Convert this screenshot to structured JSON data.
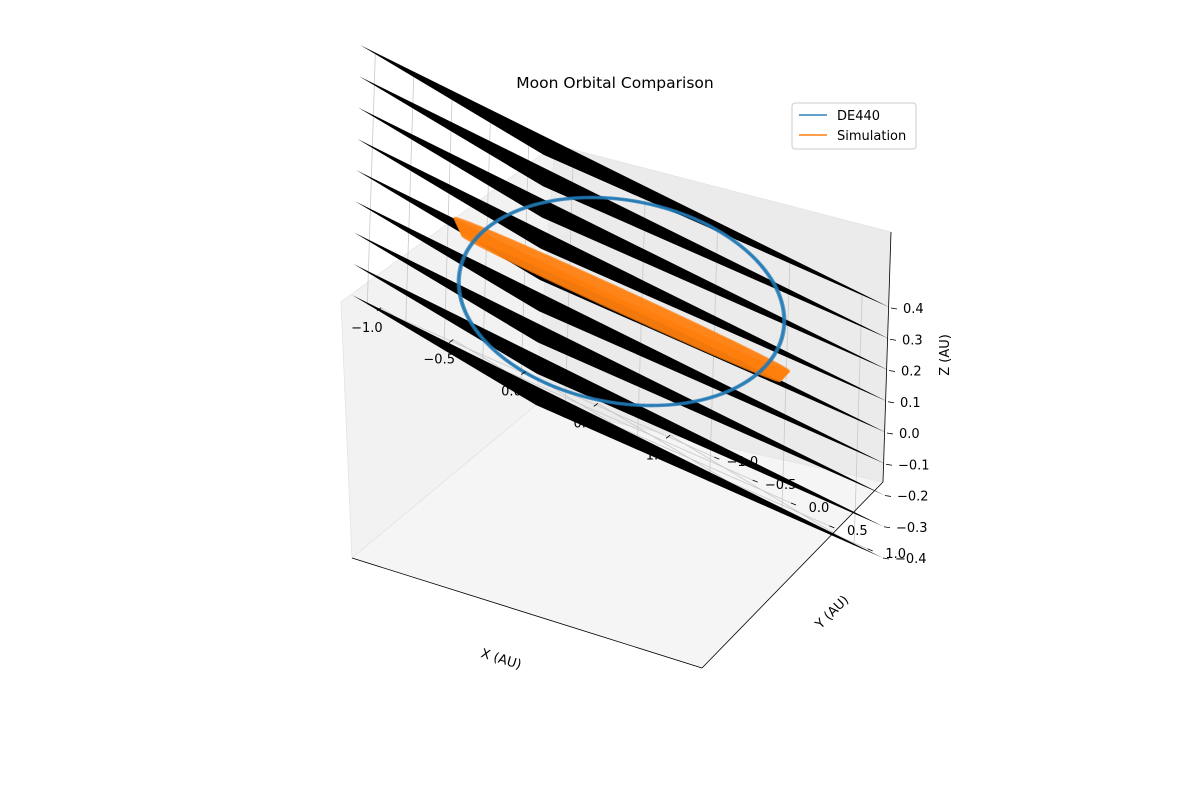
{
  "chart_data": {
    "type": "line3d",
    "title": "Moon Orbital Comparison",
    "xlabel": "X (AU)",
    "ylabel": "Y (AU)",
    "zlabel": "Z (AU)",
    "xticks": [
      "−1.0",
      "−0.5",
      "0.0",
      "0.5",
      "1.0"
    ],
    "yticks": [
      "−1.0",
      "−0.5",
      "0.0",
      "0.5",
      "1.0"
    ],
    "zticks": [
      "−0.4",
      "−0.3",
      "−0.2",
      "−0.1",
      "0.0",
      "0.1",
      "0.2",
      "0.3",
      "0.4"
    ],
    "grid": true,
    "legend_position": "top-right",
    "series": [
      {
        "name": "DE440",
        "color": "#1f77b4",
        "shape": "tilted circular orbit, radius ≈ 1.0 AU, inclined ≈ 23° about the x-axis, crossing z ≈ ±0.4 AU"
      },
      {
        "name": "Simulation",
        "color": "#ff7f0e",
        "shape": "circular orbit, radius ≈ 1.0 AU, nearly flat near z ≈ 0, band spanning roughly −0.02 to +0.02 AU in z"
      }
    ],
    "series_colors": [
      "#1f77b4",
      "#ff7f0e"
    ]
  }
}
